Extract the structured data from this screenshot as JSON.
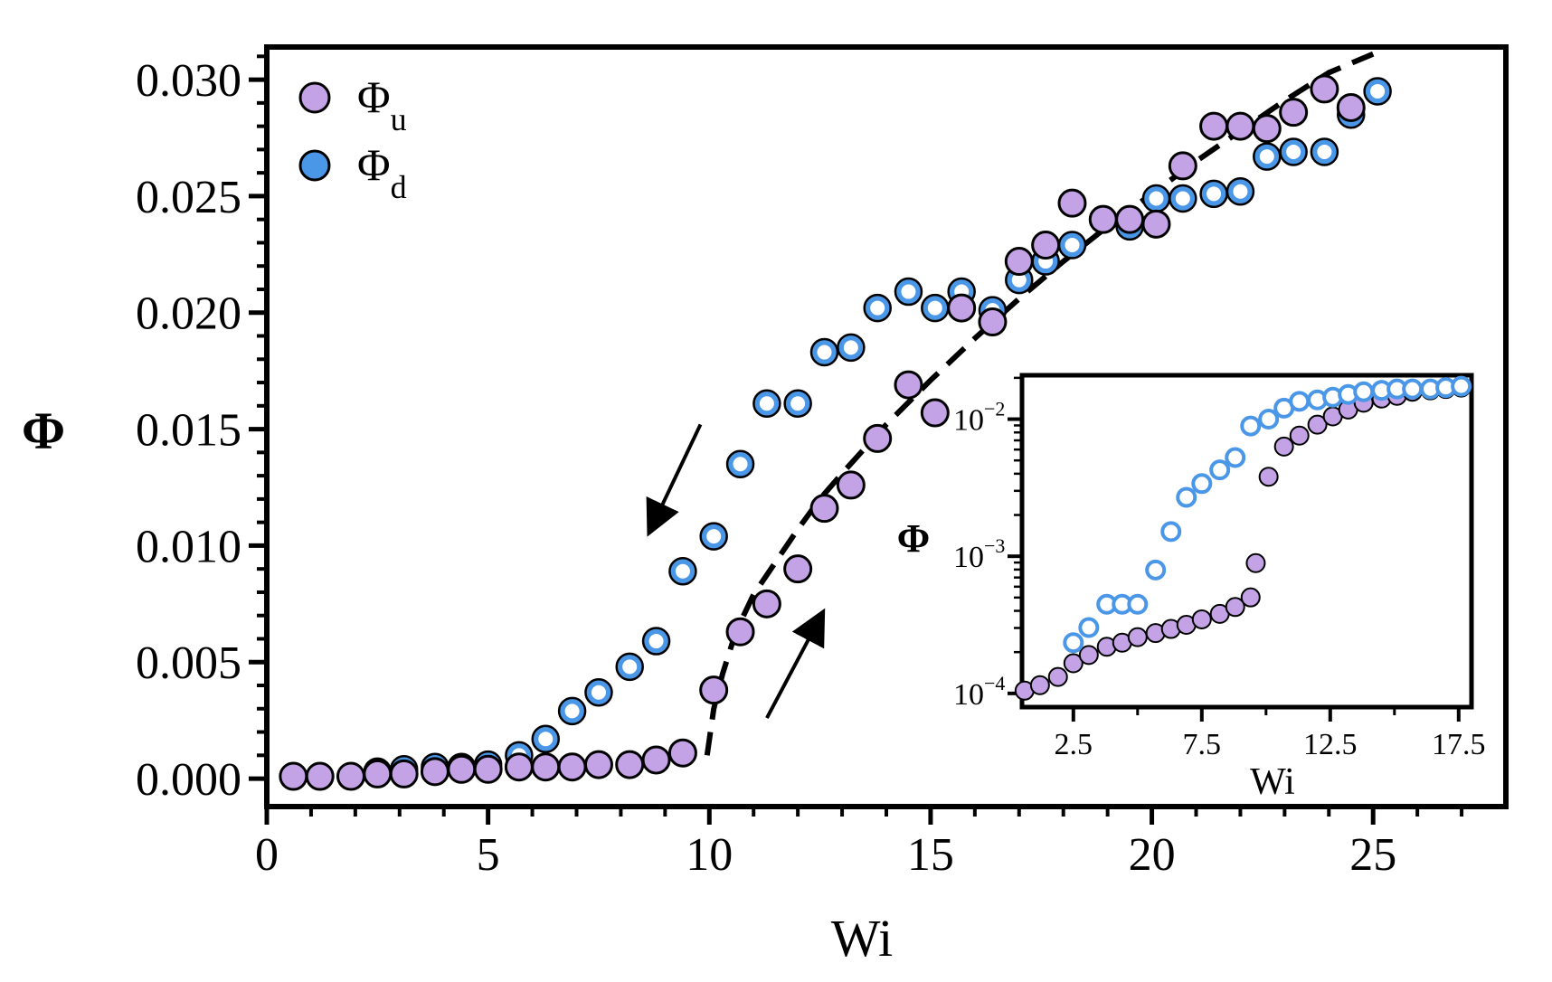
{
  "chart_data": [
    {
      "type": "scatter",
      "title": "",
      "xlabel": "Wi",
      "ylabel": "Φ",
      "xlim": [
        0,
        28
      ],
      "ylim": [
        -0.0012,
        0.0314
      ],
      "xticks": [
        0,
        5,
        10,
        15,
        20,
        25
      ],
      "xtick_labels": [
        "0",
        "5",
        "10",
        "15",
        "20",
        "25"
      ],
      "yticks": [
        0,
        0.005,
        0.01,
        0.015,
        0.02,
        0.025,
        0.03
      ],
      "ytick_labels": [
        "0.000",
        "0.005",
        "0.010",
        "0.015",
        "0.020",
        "0.025",
        "0.030"
      ],
      "grid": false,
      "legend_position": "top-left",
      "colors": {
        "up": "#c3a3e6",
        "down": "#4a97e8",
        "edge": "#000000",
        "inner": "#ffffff"
      },
      "series": [
        {
          "name": "Φ_u",
          "legend_main": "Φ",
          "legend_sub": "u",
          "marker": "filled-circle",
          "x": [
            0.6,
            1.2,
            1.9,
            2.5,
            3.1,
            3.8,
            4.4,
            5.0,
            5.7,
            6.3,
            6.9,
            7.5,
            8.2,
            8.8,
            9.4,
            10.1,
            10.7,
            11.3,
            12.0,
            12.6,
            13.2,
            13.8,
            14.5,
            15.1,
            15.7,
            16.4,
            17.0,
            17.6,
            18.2,
            18.9,
            19.5,
            20.1,
            20.7,
            21.4,
            22.0,
            22.6,
            23.2,
            23.9,
            24.5
          ],
          "y": [
            0.0001,
            0.0001,
            0.0001,
            0.0002,
            0.0002,
            0.0003,
            0.0004,
            0.0004,
            0.0005,
            0.0005,
            0.0005,
            0.0006,
            0.0006,
            0.0008,
            0.0011,
            0.0038,
            0.0063,
            0.0075,
            0.009,
            0.0116,
            0.0126,
            0.0146,
            0.0169,
            0.0157,
            0.0202,
            0.0196,
            0.0222,
            0.0229,
            0.0247,
            0.024,
            0.024,
            0.0238,
            0.0263,
            0.028,
            0.028,
            0.0279,
            0.0286,
            0.0296,
            0.0288
          ]
        },
        {
          "name": "Φ_d",
          "legend_main": "Φ",
          "legend_sub": "d",
          "marker": "open-circle",
          "x": [
            2.5,
            3.1,
            3.8,
            4.4,
            5.0,
            5.7,
            6.3,
            6.9,
            7.5,
            8.2,
            8.8,
            9.4,
            10.1,
            10.7,
            11.3,
            12.0,
            12.6,
            13.2,
            13.8,
            14.5,
            15.1,
            15.7,
            16.4,
            17.0,
            17.6,
            18.2,
            19.5,
            20.1,
            20.7,
            21.4,
            22.0,
            22.6,
            23.2,
            23.9,
            24.5,
            25.1
          ],
          "y": [
            0.0003,
            0.0004,
            0.0005,
            0.0005,
            0.0006,
            0.001,
            0.0017,
            0.0029,
            0.0037,
            0.0048,
            0.0059,
            0.0089,
            0.0104,
            0.0135,
            0.0161,
            0.0161,
            0.0183,
            0.0185,
            0.0202,
            0.0209,
            0.0202,
            0.0209,
            0.0201,
            0.0214,
            0.0222,
            0.0229,
            0.0237,
            0.0249,
            0.0249,
            0.0251,
            0.0252,
            0.0267,
            0.0269,
            0.0269,
            0.0285,
            0.0295
          ]
        },
        {
          "name": "fit",
          "marker": "dashed-line",
          "x": [
            9.95,
            10.1,
            10.3,
            10.6,
            11.0,
            11.5,
            12.0,
            12.5,
            13.0,
            14.0,
            15.0,
            16.0,
            17.0,
            18.0,
            19.0,
            20.0,
            21.0,
            22.0,
            23.0,
            24.0,
            25.0
          ],
          "y": [
            0.001,
            0.003,
            0.0045,
            0.0063,
            0.0079,
            0.0093,
            0.0107,
            0.012,
            0.0131,
            0.0152,
            0.0171,
            0.0189,
            0.0206,
            0.0222,
            0.0237,
            0.0251,
            0.0265,
            0.0278,
            0.0291,
            0.0303,
            0.0311
          ]
        }
      ],
      "annotations": [
        {
          "type": "arrow",
          "from": [
            9.8,
            0.0152
          ],
          "to": [
            8.7,
            0.0108
          ],
          "meaning": "decreasing Wi"
        },
        {
          "type": "arrow",
          "from": [
            11.3,
            0.0026
          ],
          "to": [
            12.5,
            0.0069
          ],
          "meaning": "increasing Wi"
        }
      ]
    },
    {
      "type": "scatter",
      "inset": true,
      "xlabel": "Wi",
      "ylabel": "Φ",
      "yscale": "log",
      "xlim": [
        0.5,
        18.0
      ],
      "ylim_log10": [
        -4.1,
        -1.68
      ],
      "xticks": [
        2.5,
        7.5,
        12.5,
        17.5
      ],
      "xtick_labels": [
        "2.5",
        "7.5",
        "12.5",
        "17.5"
      ],
      "ytick_label_base": "10",
      "yticks_log10": [
        -4,
        -3,
        -2
      ],
      "ytick_exponents": [
        "−4",
        "−3",
        "−2"
      ],
      "grid": false,
      "series": [
        {
          "name": "Φ_u",
          "marker": "filled-circle",
          "x": [
            0.6,
            1.2,
            1.9,
            2.5,
            3.1,
            3.8,
            4.4,
            5.0,
            5.7,
            6.3,
            6.9,
            7.5,
            8.2,
            8.8,
            9.4,
            9.6,
            10.1,
            10.7,
            11.3,
            12.0,
            12.6,
            13.2,
            13.8,
            14.5,
            15.1,
            15.7,
            16.4,
            17.0,
            17.6
          ],
          "y_log10": [
            -3.98,
            -3.94,
            -3.88,
            -3.78,
            -3.72,
            -3.66,
            -3.63,
            -3.59,
            -3.56,
            -3.53,
            -3.5,
            -3.46,
            -3.42,
            -3.37,
            -3.3,
            -3.05,
            -2.42,
            -2.2,
            -2.12,
            -2.04,
            -1.98,
            -1.93,
            -1.88,
            -1.85,
            -1.83,
            -1.8,
            -1.79,
            -1.78,
            -1.77
          ]
        },
        {
          "name": "Φ_d",
          "marker": "open-circle",
          "x": [
            2.5,
            3.1,
            3.8,
            4.4,
            5.0,
            5.7,
            6.3,
            6.9,
            7.5,
            8.2,
            8.8,
            9.4,
            10.1,
            10.7,
            11.3,
            12.0,
            12.6,
            13.2,
            13.8,
            14.5,
            15.1,
            15.7,
            16.4,
            17.0,
            17.6
          ],
          "y_log10": [
            -3.63,
            -3.52,
            -3.35,
            -3.35,
            -3.35,
            -3.1,
            -2.82,
            -2.57,
            -2.47,
            -2.37,
            -2.28,
            -2.05,
            -2.0,
            -1.92,
            -1.87,
            -1.86,
            -1.84,
            -1.82,
            -1.8,
            -1.79,
            -1.78,
            -1.78,
            -1.78,
            -1.77,
            -1.76
          ]
        }
      ]
    }
  ]
}
